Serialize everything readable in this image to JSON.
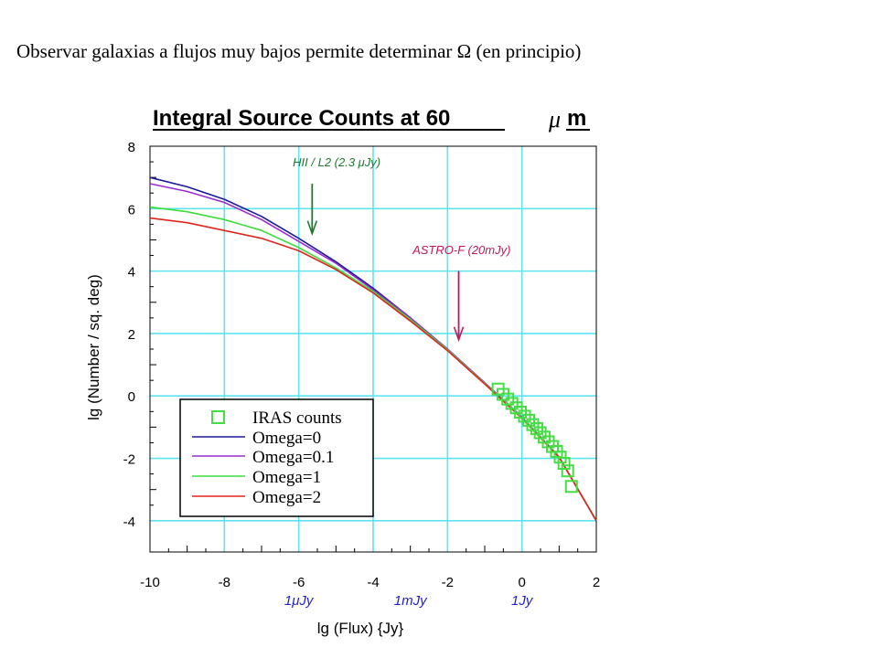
{
  "slide": {
    "caption": "Observar galaxias a flujos muy bajos permite determinar Ω (en principio)"
  },
  "chart_data": {
    "type": "line",
    "title": "Integral Source Counts at 60",
    "title_unit_symbol": "μ",
    "title_unit": "m",
    "xlabel": "lg (Flux) {Jy}",
    "ylabel": "lg (Number / sq. deg)",
    "xlim": [
      -10,
      2
    ],
    "ylim": [
      -5,
      8
    ],
    "x_ticks": [
      -10,
      -8,
      -6,
      -4,
      -2,
      0,
      2
    ],
    "y_ticks": [
      -4,
      -2,
      0,
      2,
      4,
      6,
      8
    ],
    "grid": true,
    "colors": {
      "grid": "#5fe3f1",
      "omega0": "#1a1a9a",
      "omega01": "#9a2bd0",
      "omega1": "#3ddc3d",
      "omega2": "#e0261c",
      "iras": "#44dd44",
      "hii_marker": "#1e7a2e",
      "astro_marker": "#c2185b",
      "flux_units": "#2222cc"
    },
    "flux_unit_labels": [
      {
        "x": -6,
        "text": "1μJy"
      },
      {
        "x": -3,
        "text": "1mJy"
      },
      {
        "x": 0,
        "text": "1Jy"
      }
    ],
    "annotations": [
      {
        "text": "HII / L2 (2.3 μJy)",
        "x": -5.64
      },
      {
        "text": "ASTRO-F (20mJy)",
        "x": -1.7
      }
    ],
    "legend": {
      "placement": "lower-left",
      "entries": [
        "IRAS counts",
        "Omega=0",
        "Omega=0.1",
        "Omega=1",
        "Omega=2"
      ]
    },
    "series": [
      {
        "name": "Omega=0",
        "x": [
          -10,
          -9,
          -8,
          -7,
          -6,
          -5,
          -4,
          -3,
          -2,
          -1,
          0,
          1,
          2
        ],
        "y": [
          7.0,
          6.7,
          6.3,
          5.75,
          5.05,
          4.3,
          3.45,
          2.5,
          1.5,
          0.42,
          -0.68,
          -1.95,
          -4.0
        ]
      },
      {
        "name": "Omega=0.1",
        "x": [
          -10,
          -9,
          -8,
          -7,
          -6,
          -5,
          -4,
          -3,
          -2,
          -1,
          0,
          1,
          2
        ],
        "y": [
          6.8,
          6.55,
          6.2,
          5.65,
          4.95,
          4.25,
          3.4,
          2.5,
          1.5,
          0.42,
          -0.68,
          -1.95,
          -4.0
        ]
      },
      {
        "name": "Omega=1",
        "x": [
          -10,
          -9,
          -8,
          -7,
          -6,
          -5,
          -4,
          -3,
          -2,
          -1,
          0,
          1,
          2
        ],
        "y": [
          6.05,
          5.9,
          5.65,
          5.3,
          4.75,
          4.1,
          3.35,
          2.45,
          1.48,
          0.4,
          -0.7,
          -1.95,
          -4.0
        ]
      },
      {
        "name": "Omega=2",
        "x": [
          -10,
          -9,
          -8,
          -7,
          -6,
          -5,
          -4,
          -3,
          -2,
          -1,
          0,
          1,
          2
        ],
        "y": [
          5.7,
          5.55,
          5.3,
          5.05,
          4.65,
          4.05,
          3.3,
          2.4,
          1.45,
          0.38,
          -0.72,
          -1.97,
          -4.0
        ]
      },
      {
        "name": "IRAS counts",
        "kind": "scatter",
        "x": [
          -0.64,
          -0.51,
          -0.38,
          -0.27,
          -0.15,
          -0.04,
          0.07,
          0.18,
          0.29,
          0.4,
          0.49,
          0.6,
          0.71,
          0.82,
          0.93,
          1.03,
          1.13,
          1.23,
          1.33
        ],
        "y": [
          0.22,
          0.05,
          -0.1,
          -0.24,
          -0.38,
          -0.52,
          -0.65,
          -0.78,
          -0.92,
          -1.05,
          -1.18,
          -1.32,
          -1.47,
          -1.62,
          -1.78,
          -1.96,
          -2.16,
          -2.4,
          -2.9
        ]
      }
    ]
  }
}
